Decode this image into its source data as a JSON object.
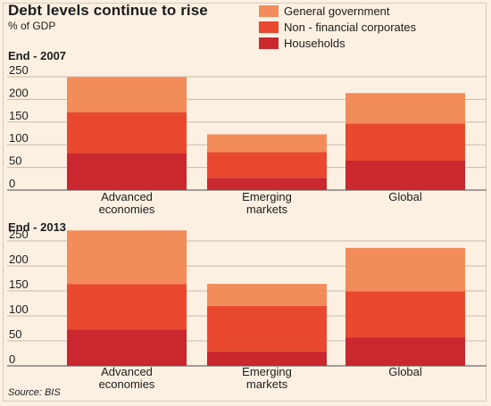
{
  "header": {
    "title": "Debt levels continue to rise",
    "subtitle": "% of GDP"
  },
  "legend": [
    {
      "label": "General government",
      "color": "#f28c5a"
    },
    {
      "label": "Non - financial corporates",
      "color": "#e8492f"
    },
    {
      "label": "Households",
      "color": "#c8282e"
    }
  ],
  "source": "Source: BIS",
  "chart_data": [
    {
      "type": "bar",
      "stacked": true,
      "title": "End - 2007",
      "categories": [
        [
          "Advanced",
          "economies"
        ],
        [
          "Emerging",
          "markets"
        ],
        [
          "Global"
        ]
      ],
      "series": [
        {
          "name": "Households",
          "values": [
            82,
            27,
            65
          ]
        },
        {
          "name": "Non - financial corporates",
          "values": [
            90,
            57,
            82
          ]
        },
        {
          "name": "General government",
          "values": [
            77,
            39,
            67
          ]
        }
      ],
      "ylim": [
        0,
        250
      ],
      "yticks": [
        0,
        50,
        100,
        150,
        200,
        250
      ],
      "grid": true
    },
    {
      "type": "bar",
      "stacked": true,
      "title": "End - 2013",
      "categories": [
        [
          "Advanced",
          "economies"
        ],
        [
          "Emerging",
          "markets"
        ],
        [
          "Global"
        ]
      ],
      "series": [
        {
          "name": "Households",
          "values": [
            73,
            29,
            57
          ]
        },
        {
          "name": "Non - financial corporates",
          "values": [
            91,
            91,
            92
          ]
        },
        {
          "name": "General government",
          "values": [
            107,
            44,
            87
          ]
        }
      ],
      "ylim": [
        0,
        250
      ],
      "yticks": [
        0,
        50,
        100,
        150,
        200,
        250
      ],
      "grid": true
    }
  ]
}
